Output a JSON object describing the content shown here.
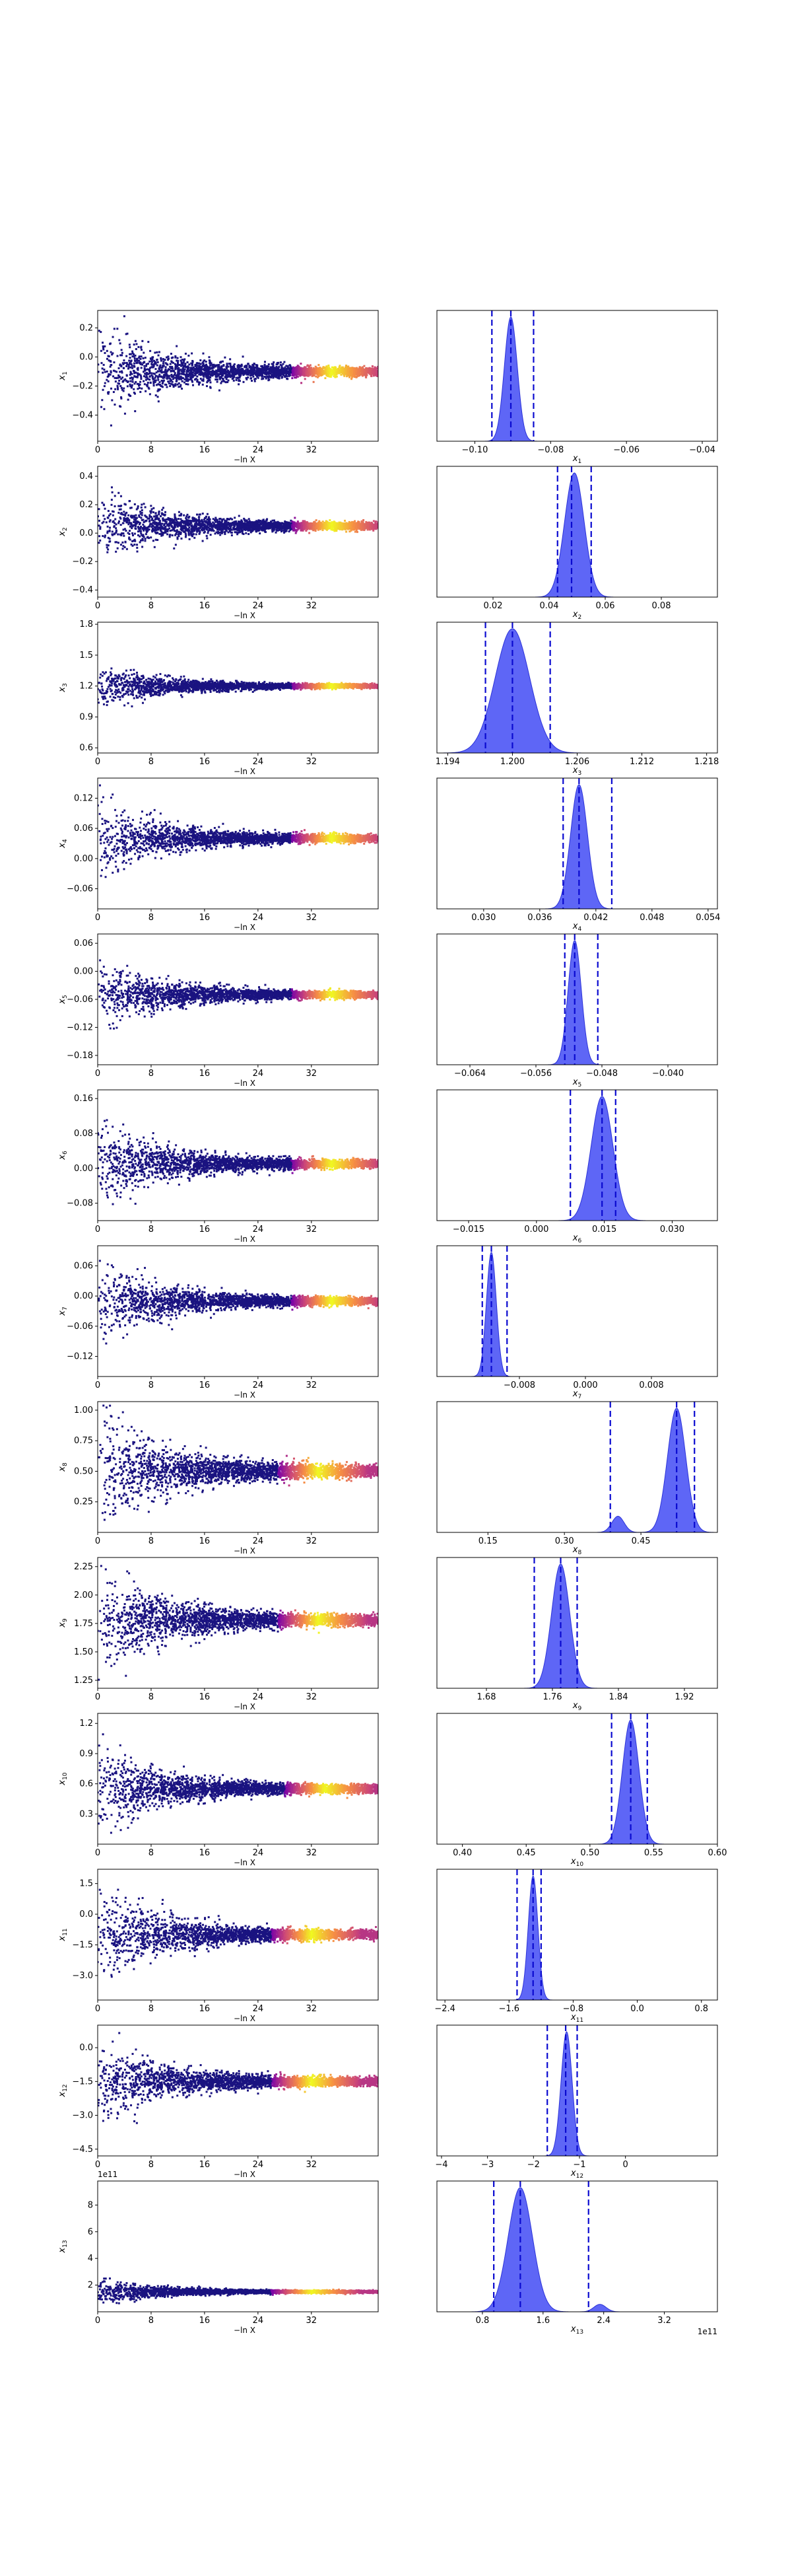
{
  "chart_data": [
    {
      "param": "x1",
      "type": "scatter",
      "xlabel": "−ln X",
      "ylabel": "x",
      "ysub": "1",
      "xlim": [
        0,
        42
      ],
      "xticks": [
        "0",
        "8",
        "16",
        "24",
        "32"
      ],
      "ylim": [
        -0.58,
        0.32
      ],
      "yticks": [
        {
          "v": 0.2,
          "label": "0.2"
        },
        {
          "v": 0.0,
          "label": "0.0"
        },
        {
          "v": -0.2,
          "label": "−0.2"
        },
        {
          "v": -0.4,
          "label": "−0.4"
        }
      ],
      "center": -0.1,
      "spread": 0.55,
      "hot_from": 29
    },
    {
      "param": "x1",
      "type": "area",
      "xlabel": "x",
      "xsub": "1",
      "xlim": [
        -0.11,
        -0.036
      ],
      "xticks": [
        {
          "v": -0.1,
          "label": "−0.10"
        },
        {
          "v": -0.08,
          "label": "−0.08"
        },
        {
          "v": -0.06,
          "label": "−0.06"
        },
        {
          "v": -0.04,
          "label": "−0.04"
        }
      ],
      "peaks": [
        {
          "mu": -0.0905,
          "sigma": 0.0017,
          "w": 1.0
        }
      ],
      "dashed": [
        -0.0955,
        -0.0905,
        -0.0845
      ]
    },
    {
      "param": "x2",
      "type": "scatter",
      "xlabel": "−ln X",
      "ylabel": "x",
      "ysub": "2",
      "xlim": [
        0,
        42
      ],
      "xticks": [
        "0",
        "8",
        "16",
        "24",
        "32"
      ],
      "ylim": [
        -0.45,
        0.47
      ],
      "yticks": [
        {
          "v": 0.4,
          "label": "0.4"
        },
        {
          "v": 0.2,
          "label": "0.2"
        },
        {
          "v": 0.0,
          "label": "0.0"
        },
        {
          "v": -0.2,
          "label": "−0.2"
        },
        {
          "v": -0.4,
          "label": "−0.4"
        }
      ],
      "center": 0.05,
      "spread": 0.45,
      "hot_from": 29
    },
    {
      "param": "x2",
      "type": "area",
      "xlabel": "x",
      "xsub": "2",
      "xlim": [
        0.0,
        0.1
      ],
      "xticks": [
        {
          "v": 0.02,
          "label": "0.02"
        },
        {
          "v": 0.04,
          "label": "0.04"
        },
        {
          "v": 0.06,
          "label": "0.06"
        },
        {
          "v": 0.08,
          "label": "0.08"
        }
      ],
      "peaks": [
        {
          "mu": 0.049,
          "sigma": 0.0035,
          "w": 1.0
        }
      ],
      "dashed": [
        0.043,
        0.048,
        0.055
      ]
    },
    {
      "param": "x3",
      "type": "scatter",
      "xlabel": "−ln X",
      "ylabel": "x",
      "ysub": "3",
      "xlim": [
        0,
        42
      ],
      "xticks": [
        "0",
        "8",
        "16",
        "24",
        "32"
      ],
      "ylim": [
        0.55,
        1.82
      ],
      "yticks": [
        {
          "v": 1.8,
          "label": "1.8"
        },
        {
          "v": 1.5,
          "label": "1.5"
        },
        {
          "v": 1.2,
          "label": "1.2"
        },
        {
          "v": 0.9,
          "label": "0.9"
        },
        {
          "v": 0.6,
          "label": "0.6"
        }
      ],
      "center": 1.2,
      "spread": 0.35,
      "hot_from": 29
    },
    {
      "param": "x3",
      "type": "area",
      "xlabel": "x",
      "xsub": "3",
      "xlim": [
        1.193,
        1.219
      ],
      "xticks": [
        {
          "v": 1.194,
          "label": "1.194"
        },
        {
          "v": 1.2,
          "label": "1.200"
        },
        {
          "v": 1.206,
          "label": "1.206"
        },
        {
          "v": 1.212,
          "label": "1.212"
        },
        {
          "v": 1.218,
          "label": "1.218"
        }
      ],
      "peaks": [
        {
          "mu": 1.2,
          "sigma": 0.0016,
          "w": 1.0
        }
      ],
      "dashed": [
        1.1975,
        1.2,
        1.2035
      ]
    },
    {
      "param": "x4",
      "type": "scatter",
      "xlabel": "−ln X",
      "ylabel": "x",
      "ysub": "4",
      "xlim": [
        0,
        42
      ],
      "xticks": [
        "0",
        "8",
        "16",
        "24",
        "32"
      ],
      "ylim": [
        -0.1,
        0.16
      ],
      "yticks": [
        {
          "v": 0.12,
          "label": "0.12"
        },
        {
          "v": 0.06,
          "label": "0.06"
        },
        {
          "v": 0.0,
          "label": "0.00"
        },
        {
          "v": -0.06,
          "label": "−0.06"
        }
      ],
      "center": 0.04,
      "spread": 0.13,
      "hot_from": 29
    },
    {
      "param": "x4",
      "type": "area",
      "xlabel": "x",
      "xsub": "4",
      "xlim": [
        0.025,
        0.055
      ],
      "xticks": [
        {
          "v": 0.03,
          "label": "0.030"
        },
        {
          "v": 0.036,
          "label": "0.036"
        },
        {
          "v": 0.042,
          "label": "0.042"
        },
        {
          "v": 0.048,
          "label": "0.048"
        },
        {
          "v": 0.054,
          "label": "0.054"
        }
      ],
      "peaks": [
        {
          "mu": 0.0402,
          "sigma": 0.0009,
          "w": 1.0
        }
      ],
      "dashed": [
        0.0385,
        0.0402,
        0.0437
      ]
    },
    {
      "param": "x5",
      "type": "scatter",
      "xlabel": "−ln X",
      "ylabel": "x",
      "ysub": "5",
      "xlim": [
        0,
        42
      ],
      "xticks": [
        "0",
        "8",
        "16",
        "24",
        "32"
      ],
      "ylim": [
        -0.2,
        0.08
      ],
      "yticks": [
        {
          "v": 0.06,
          "label": "0.06"
        },
        {
          "v": 0.0,
          "label": "0.00"
        },
        {
          "v": -0.06,
          "label": "−0.06"
        },
        {
          "v": -0.12,
          "label": "−0.12"
        },
        {
          "v": -0.18,
          "label": "−0.18"
        }
      ],
      "center": -0.05,
      "spread": 0.13,
      "hot_from": 29
    },
    {
      "param": "x5",
      "type": "area",
      "xlabel": "x",
      "xsub": "5",
      "xlim": [
        -0.068,
        -0.034
      ],
      "xticks": [
        {
          "v": -0.064,
          "label": "−0.064"
        },
        {
          "v": -0.056,
          "label": "−0.056"
        },
        {
          "v": -0.048,
          "label": "−0.048"
        },
        {
          "v": -0.04,
          "label": "−0.040"
        }
      ],
      "peaks": [
        {
          "mu": -0.0513,
          "sigma": 0.0008,
          "w": 1.0
        }
      ],
      "dashed": [
        -0.0525,
        -0.0513,
        -0.0485
      ]
    },
    {
      "param": "x6",
      "type": "scatter",
      "xlabel": "−ln X",
      "ylabel": "x",
      "ysub": "6",
      "xlim": [
        0,
        42
      ],
      "xticks": [
        "0",
        "8",
        "16",
        "24",
        "32"
      ],
      "ylim": [
        -0.12,
        0.18
      ],
      "yticks": [
        {
          "v": 0.16,
          "label": "0.16"
        },
        {
          "v": 0.08,
          "label": "0.08"
        },
        {
          "v": 0.0,
          "label": "0.00"
        },
        {
          "v": -0.08,
          "label": "−0.08"
        }
      ],
      "center": 0.01,
      "spread": 0.17,
      "hot_from": 29
    },
    {
      "param": "x6",
      "type": "area",
      "xlabel": "x",
      "xsub": "6",
      "xlim": [
        -0.022,
        0.04
      ],
      "xticks": [
        {
          "v": -0.015,
          "label": "−0.015"
        },
        {
          "v": 0.0,
          "label": "0.000"
        },
        {
          "v": 0.015,
          "label": "0.015"
        },
        {
          "v": 0.03,
          "label": "0.030"
        }
      ],
      "peaks": [
        {
          "mu": 0.0145,
          "sigma": 0.0024,
          "w": 1.0
        }
      ],
      "dashed": [
        0.0075,
        0.0145,
        0.0175
      ]
    },
    {
      "param": "x7",
      "type": "scatter",
      "xlabel": "−ln X",
      "ylabel": "x",
      "ysub": "7",
      "xlim": [
        0,
        42
      ],
      "xticks": [
        "0",
        "8",
        "16",
        "24",
        "32"
      ],
      "ylim": [
        -0.16,
        0.1
      ],
      "yticks": [
        {
          "v": 0.06,
          "label": "0.06"
        },
        {
          "v": 0.0,
          "label": "0.00"
        },
        {
          "v": -0.06,
          "label": "−0.06"
        },
        {
          "v": -0.12,
          "label": "−0.12"
        }
      ],
      "center": -0.01,
      "spread": 0.14,
      "hot_from": 29
    },
    {
      "param": "x7",
      "type": "area",
      "xlabel": "x",
      "xsub": "7",
      "xlim": [
        -0.018,
        0.016
      ],
      "xticks": [
        {
          "v": -0.008,
          "label": "−0.008"
        },
        {
          "v": 0.0,
          "label": "0.000"
        },
        {
          "v": 0.008,
          "label": "0.008"
        }
      ],
      "peaks": [
        {
          "mu": -0.0114,
          "sigma": 0.0006,
          "w": 1.0
        }
      ],
      "dashed": [
        -0.0125,
        -0.0114,
        -0.0095
      ]
    },
    {
      "param": "x8",
      "type": "scatter",
      "xlabel": "−ln X",
      "ylabel": "x",
      "ysub": "8",
      "xlim": [
        0,
        42
      ],
      "xticks": [
        "0",
        "8",
        "16",
        "24",
        "32"
      ],
      "ylim": [
        0.0,
        1.07
      ],
      "yticks": [
        {
          "v": 1.0,
          "label": "1.00"
        },
        {
          "v": 0.75,
          "label": "0.75"
        },
        {
          "v": 0.5,
          "label": "0.50"
        },
        {
          "v": 0.25,
          "label": "0.25"
        }
      ],
      "center": 0.5,
      "spread": 0.9,
      "hot_from": 27
    },
    {
      "param": "x8",
      "type": "area",
      "xlabel": "x",
      "xsub": "8",
      "xlim": [
        0.05,
        0.6
      ],
      "xticks": [
        {
          "v": 0.15,
          "label": "0.15"
        },
        {
          "v": 0.3,
          "label": "0.30"
        },
        {
          "v": 0.45,
          "label": "0.45"
        }
      ],
      "peaks": [
        {
          "mu": 0.52,
          "sigma": 0.018,
          "w": 1.0
        },
        {
          "mu": 0.405,
          "sigma": 0.012,
          "w": 0.13
        }
      ],
      "dashed": [
        0.39,
        0.52,
        0.555
      ]
    },
    {
      "param": "x9",
      "type": "scatter",
      "xlabel": "−ln X",
      "ylabel": "x",
      "ysub": "9",
      "xlim": [
        0,
        42
      ],
      "xticks": [
        "0",
        "8",
        "16",
        "24",
        "32"
      ],
      "ylim": [
        1.18,
        2.33
      ],
      "yticks": [
        {
          "v": 2.25,
          "label": "2.25"
        },
        {
          "v": 2.0,
          "label": "2.00"
        },
        {
          "v": 1.75,
          "label": "1.75"
        },
        {
          "v": 1.5,
          "label": "1.50"
        },
        {
          "v": 1.25,
          "label": "1.25"
        }
      ],
      "center": 1.78,
      "spread": 0.85,
      "hot_from": 27
    },
    {
      "param": "x9",
      "type": "area",
      "xlabel": "x",
      "xsub": "9",
      "xlim": [
        1.62,
        1.96
      ],
      "xticks": [
        {
          "v": 1.68,
          "label": "1.68"
        },
        {
          "v": 1.76,
          "label": "1.76"
        },
        {
          "v": 1.84,
          "label": "1.84"
        },
        {
          "v": 1.92,
          "label": "1.92"
        }
      ],
      "peaks": [
        {
          "mu": 1.77,
          "sigma": 0.011,
          "w": 1.0
        }
      ],
      "dashed": [
        1.738,
        1.77,
        1.79
      ]
    },
    {
      "param": "x10",
      "type": "scatter",
      "xlabel": "−ln X",
      "ylabel": "x",
      "ysub": "10",
      "xlim": [
        0,
        42
      ],
      "xticks": [
        "0",
        "8",
        "16",
        "24",
        "32"
      ],
      "ylim": [
        0.0,
        1.3
      ],
      "yticks": [
        {
          "v": 1.2,
          "label": "1.2"
        },
        {
          "v": 0.9,
          "label": "0.9"
        },
        {
          "v": 0.6,
          "label": "0.6"
        },
        {
          "v": 0.3,
          "label": "0.3"
        }
      ],
      "center": 0.55,
      "spread": 0.75,
      "hot_from": 28
    },
    {
      "param": "x10",
      "type": "area",
      "xlabel": "x",
      "xsub": "10",
      "xlim": [
        0.38,
        0.6
      ],
      "xticks": [
        {
          "v": 0.4,
          "label": "0.40"
        },
        {
          "v": 0.45,
          "label": "0.45"
        },
        {
          "v": 0.5,
          "label": "0.50"
        },
        {
          "v": 0.55,
          "label": "0.55"
        },
        {
          "v": 0.6,
          "label": "0.60"
        }
      ],
      "peaks": [
        {
          "mu": 0.532,
          "sigma": 0.0065,
          "w": 1.0
        }
      ],
      "dashed": [
        0.517,
        0.532,
        0.545
      ]
    },
    {
      "param": "x11",
      "type": "scatter",
      "xlabel": "−ln X",
      "ylabel": "x",
      "ysub": "11",
      "xlim": [
        0,
        42
      ],
      "xticks": [
        "0",
        "8",
        "16",
        "24",
        "32"
      ],
      "ylim": [
        -4.2,
        2.2
      ],
      "yticks": [
        {
          "v": 1.5,
          "label": "1.5"
        },
        {
          "v": 0.0,
          "label": "0.0"
        },
        {
          "v": -1.5,
          "label": "−1.5"
        },
        {
          "v": -3.0,
          "label": "−3.0"
        }
      ],
      "center": -1.0,
      "spread": 4.0,
      "hot_from": 26
    },
    {
      "param": "x11",
      "type": "area",
      "xlabel": "x",
      "xsub": "11",
      "xlim": [
        -2.5,
        1.0
      ],
      "xticks": [
        {
          "v": -2.4,
          "label": "−2.4"
        },
        {
          "v": -1.6,
          "label": "−1.6"
        },
        {
          "v": -0.8,
          "label": "−0.8"
        },
        {
          "v": 0.0,
          "label": "0.0"
        },
        {
          "v": 0.8,
          "label": "0.8"
        }
      ],
      "peaks": [
        {
          "mu": -1.3,
          "sigma": 0.06,
          "w": 1.0
        }
      ],
      "dashed": [
        -1.5,
        -1.3,
        -1.2
      ]
    },
    {
      "param": "x12",
      "type": "scatter",
      "xlabel": "−ln X",
      "ylabel": "x",
      "ysub": "12",
      "xlim": [
        0,
        42
      ],
      "xticks": [
        "0",
        "8",
        "16",
        "24",
        "32"
      ],
      "ylim": [
        -4.8,
        1.0
      ],
      "yticks": [
        {
          "v": 0.0,
          "label": "0.0"
        },
        {
          "v": -1.5,
          "label": "−1.5"
        },
        {
          "v": -3.0,
          "label": "−3.0"
        },
        {
          "v": -4.5,
          "label": "−4.5"
        }
      ],
      "center": -1.5,
      "spread": 3.3,
      "hot_from": 26
    },
    {
      "param": "x12",
      "type": "area",
      "xlabel": "x",
      "xsub": "12",
      "xlim": [
        -4.1,
        2.0
      ],
      "xticks": [
        {
          "v": -4.0,
          "label": "−4"
        },
        {
          "v": -3.0,
          "label": "−3"
        },
        {
          "v": -2.0,
          "label": "−2"
        },
        {
          "v": -1.0,
          "label": "−1"
        },
        {
          "v": 0.0,
          "label": "0"
        }
      ],
      "peaks": [
        {
          "mu": -1.28,
          "sigma": 0.12,
          "w": 1.0
        }
      ],
      "dashed": [
        -1.7,
        -1.3,
        -1.05
      ]
    },
    {
      "param": "x13",
      "type": "scatter",
      "xlabel": "−ln X",
      "ylabel": "x",
      "ysub": "13",
      "offset": "1e11",
      "xlim": [
        0,
        42
      ],
      "xticks": [
        "0",
        "8",
        "16",
        "24",
        "32"
      ],
      "ylim": [
        0.0,
        9.8
      ],
      "yticks": [
        {
          "v": 8,
          "label": "8"
        },
        {
          "v": 6,
          "label": "6"
        },
        {
          "v": 4,
          "label": "4"
        },
        {
          "v": 2,
          "label": "2"
        }
      ],
      "center": 1.5,
      "spread": 1.6,
      "hot_from": 26
    },
    {
      "param": "x13",
      "type": "area",
      "xlabel": "x",
      "xsub": "13",
      "offset": "1e11",
      "xlim": [
        0.2,
        3.9
      ],
      "xticks": [
        {
          "v": 0.8,
          "label": "0.8"
        },
        {
          "v": 1.6,
          "label": "1.6"
        },
        {
          "v": 2.4,
          "label": "2.4"
        },
        {
          "v": 3.2,
          "label": "3.2"
        }
      ],
      "peaks": [
        {
          "mu": 1.3,
          "sigma": 0.16,
          "w": 1.0
        },
        {
          "mu": 2.35,
          "sigma": 0.08,
          "w": 0.06
        }
      ],
      "dashed": [
        0.95,
        1.3,
        2.2
      ]
    }
  ]
}
